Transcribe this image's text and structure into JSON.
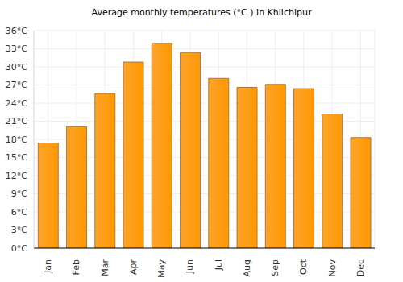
{
  "chart_data": {
    "type": "bar",
    "title": "Average monthly temperatures (°C ) in Khilchipur",
    "categories": [
      "Jan",
      "Feb",
      "Mar",
      "Apr",
      "May",
      "Jun",
      "Jul",
      "Aug",
      "Sep",
      "Oct",
      "Nov",
      "Dec"
    ],
    "values": [
      17.4,
      20.1,
      25.6,
      30.8,
      33.9,
      32.4,
      28.1,
      26.6,
      27.1,
      26.4,
      22.2,
      18.3
    ],
    "color": "#fba42c",
    "ylim": [
      0,
      36
    ],
    "yticks": [
      {
        "value": 0,
        "label": "0°C"
      },
      {
        "value": 3,
        "label": "3°C"
      },
      {
        "value": 6,
        "label": "6°C"
      },
      {
        "value": 9,
        "label": "9°C"
      },
      {
        "value": 12,
        "label": "12°C"
      },
      {
        "value": 15,
        "label": "15°C"
      },
      {
        "value": 18,
        "label": "18°C"
      },
      {
        "value": 21,
        "label": "21°C"
      },
      {
        "value": 24,
        "label": "24°C"
      },
      {
        "value": 27,
        "label": "27°C"
      },
      {
        "value": 30,
        "label": "30°C"
      },
      {
        "value": 33,
        "label": "33°C"
      },
      {
        "value": 36,
        "label": "36°C"
      }
    ],
    "grid": true
  }
}
